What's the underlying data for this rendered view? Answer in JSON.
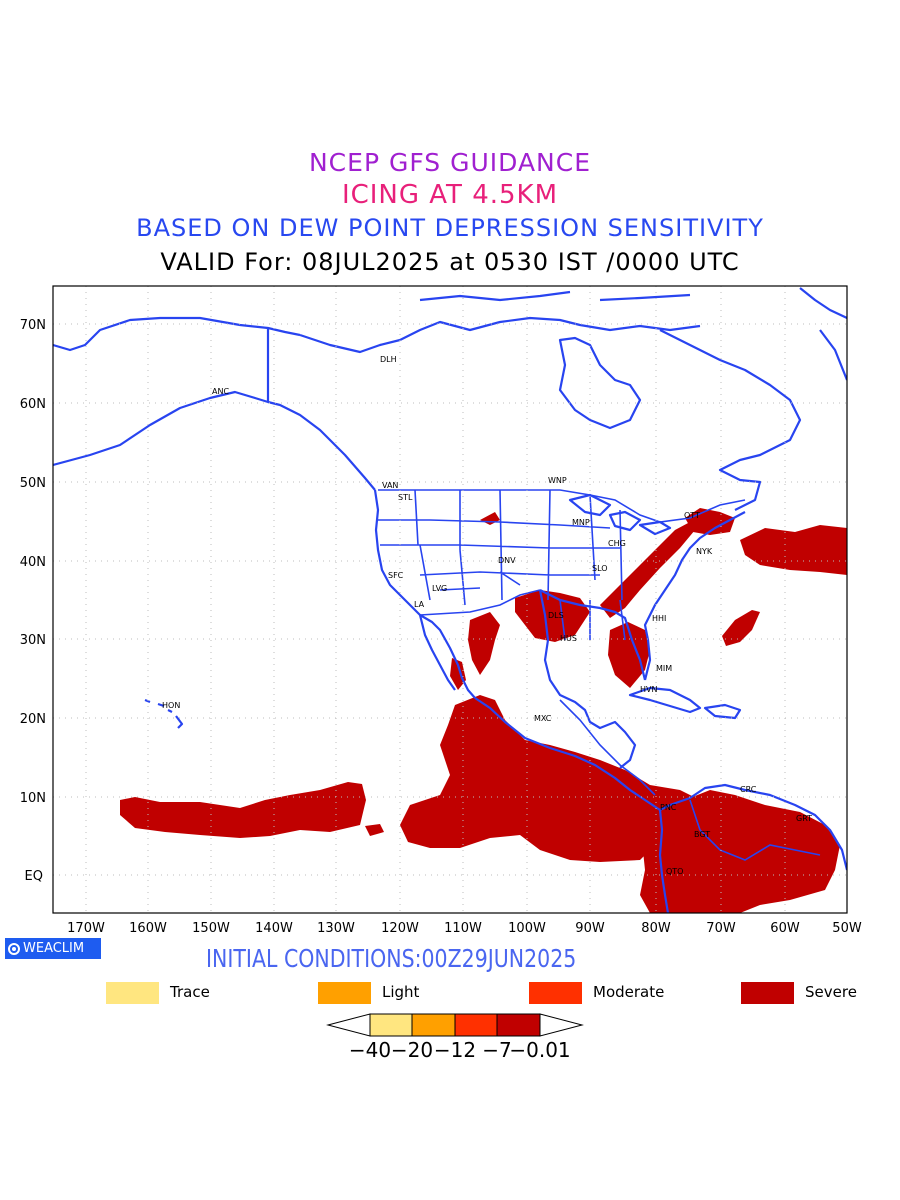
{
  "titles": {
    "line1": "NCEP GFS GUIDANCE",
    "line2": "ICING AT 4.5KM",
    "line3": "BASED ON DEW POINT DEPRESSION SENSITIVITY",
    "line4": "VALID For: 08JUL2025 at 0530 IST /0000 UTC"
  },
  "axes": {
    "y_labels": [
      "70N",
      "60N",
      "50N",
      "40N",
      "30N",
      "20N",
      "10N",
      "EQ"
    ],
    "x_labels": [
      "170W",
      "160W",
      "150W",
      "140W",
      "130W",
      "120W",
      "110W",
      "100W",
      "90W",
      "80W",
      "70W",
      "60W",
      "50W"
    ]
  },
  "stations": [
    "ANC",
    "DLH",
    "VAN",
    "STL",
    "WNP",
    "MNP",
    "OTT",
    "NYK",
    "CHG",
    "DNV",
    "SFC",
    "SLO",
    "LVG",
    "LA",
    "DLS",
    "HUS",
    "HHI",
    "MIM",
    "HVN",
    "MXC",
    "HON",
    "CRC",
    "GRT",
    "PNC",
    "BGT",
    "QTO"
  ],
  "badge": "WEACLIM",
  "initial_conditions": "INITIAL CONDITIONS:00Z29JUN2025",
  "legend": [
    {
      "label": "Trace",
      "color": "#ffe680"
    },
    {
      "label": "Light",
      "color": "#ffa000"
    },
    {
      "label": "Moderate",
      "color": "#ff3000"
    },
    {
      "label": "Severe",
      "color": "#c00000"
    }
  ],
  "colorbar": {
    "labels": [
      "−40",
      "−20",
      "−12",
      "−7",
      "−0.01"
    ],
    "colors": [
      "#ffe680",
      "#ffa000",
      "#ff3000",
      "#c00000"
    ]
  },
  "colors": {
    "coast": "#2844f0",
    "icing": "#c00000"
  }
}
